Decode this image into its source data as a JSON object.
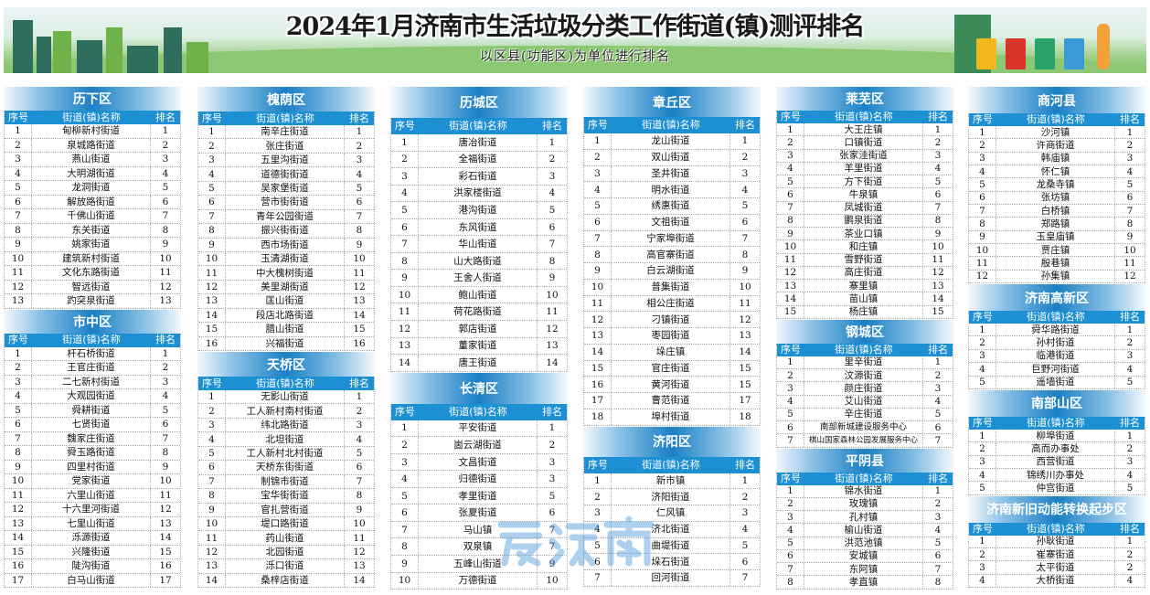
{
  "header": {
    "title": "2024年1月济南市生活垃圾分类工作街道(镇)测评排名",
    "subtitle": "以区县(功能区)为单位进行排名"
  },
  "table_headers": [
    "序号",
    "街道(镇)名称",
    "排名"
  ],
  "watermark": "爱济南",
  "colors": {
    "header_row": "#1d8fd3",
    "title_bar": "#1a7fc4"
  },
  "columns": [
    {
      "sections": [
        {
          "title": "历下区",
          "rows": [
            [
              "1",
              "甸柳新村街道",
              "1"
            ],
            [
              "2",
              "泉城路街道",
              "2"
            ],
            [
              "3",
              "燕山街道",
              "3"
            ],
            [
              "4",
              "大明湖街道",
              "4"
            ],
            [
              "5",
              "龙洞街道",
              "5"
            ],
            [
              "6",
              "解放路街道",
              "6"
            ],
            [
              "7",
              "千佛山街道",
              "7"
            ],
            [
              "8",
              "东关街道",
              "8"
            ],
            [
              "9",
              "姚家街道",
              "9"
            ],
            [
              "10",
              "建筑新村街道",
              "10"
            ],
            [
              "11",
              "文化东路街道",
              "11"
            ],
            [
              "12",
              "智远街道",
              "12"
            ],
            [
              "13",
              "趵突泉街道",
              "13"
            ]
          ]
        },
        {
          "title": "市中区",
          "rows": [
            [
              "1",
              "杆石桥街道",
              "1"
            ],
            [
              "2",
              "王官庄街道",
              "2"
            ],
            [
              "3",
              "二七新村街道",
              "3"
            ],
            [
              "4",
              "大观园街道",
              "4"
            ],
            [
              "5",
              "舜耕街道",
              "5"
            ],
            [
              "6",
              "七贤街道",
              "6"
            ],
            [
              "7",
              "魏家庄街道",
              "7"
            ],
            [
              "8",
              "舜玉路街道",
              "8"
            ],
            [
              "9",
              "四里村街道",
              "9"
            ],
            [
              "10",
              "党家街道",
              "10"
            ],
            [
              "11",
              "六里山街道",
              "11"
            ],
            [
              "12",
              "十六里河街道",
              "12"
            ],
            [
              "13",
              "七里山街道",
              "13"
            ],
            [
              "14",
              "泺源街道",
              "14"
            ],
            [
              "15",
              "兴隆街道",
              "15"
            ],
            [
              "16",
              "陡沟街道",
              "16"
            ],
            [
              "17",
              "白马山街道",
              "17"
            ]
          ]
        }
      ]
    },
    {
      "sections": [
        {
          "title": "槐荫区",
          "rows": [
            [
              "1",
              "南辛庄街道",
              "1"
            ],
            [
              "2",
              "张庄街道",
              "2"
            ],
            [
              "3",
              "五里沟街道",
              "3"
            ],
            [
              "4",
              "道德街街道",
              "4"
            ],
            [
              "5",
              "吴家堡街道",
              "5"
            ],
            [
              "6",
              "营市街街道",
              "6"
            ],
            [
              "7",
              "青年公园街道",
              "7"
            ],
            [
              "8",
              "振兴街街道",
              "8"
            ],
            [
              "9",
              "西市场街道",
              "9"
            ],
            [
              "10",
              "玉清湖街道",
              "10"
            ],
            [
              "11",
              "中大槐树街道",
              "11"
            ],
            [
              "12",
              "美里湖街道",
              "12"
            ],
            [
              "13",
              "匡山街道",
              "13"
            ],
            [
              "14",
              "段店北路街道",
              "14"
            ],
            [
              "15",
              "腊山街道",
              "15"
            ],
            [
              "16",
              "兴福街道",
              "16"
            ]
          ]
        },
        {
          "title": "天桥区",
          "rows": [
            [
              "1",
              "无影山街道",
              "1"
            ],
            [
              "2",
              "工人新村南村街道",
              "2"
            ],
            [
              "3",
              "纬北路街道",
              "3"
            ],
            [
              "4",
              "北坦街道",
              "4"
            ],
            [
              "5",
              "工人新村北村街道",
              "5"
            ],
            [
              "6",
              "天桥东街街道",
              "6"
            ],
            [
              "7",
              "制锦市街道",
              "7"
            ],
            [
              "8",
              "宝华街街道",
              "8"
            ],
            [
              "9",
              "官扎营街道",
              "9"
            ],
            [
              "10",
              "堤口路街道",
              "10"
            ],
            [
              "11",
              "药山街道",
              "11"
            ],
            [
              "12",
              "北园街道",
              "12"
            ],
            [
              "13",
              "泺口街道",
              "13"
            ],
            [
              "14",
              "桑梓店街道",
              "14"
            ]
          ]
        }
      ]
    },
    {
      "sections": [
        {
          "title": "历城区",
          "rows": [
            [
              "1",
              "唐冶街道",
              "1"
            ],
            [
              "2",
              "全福街道",
              "2"
            ],
            [
              "3",
              "彩石街道",
              "3"
            ],
            [
              "4",
              "洪家楼街道",
              "4"
            ],
            [
              "5",
              "港沟街道",
              "5"
            ],
            [
              "6",
              "东风街道",
              "6"
            ],
            [
              "7",
              "华山街道",
              "7"
            ],
            [
              "8",
              "山大路街道",
              "8"
            ],
            [
              "9",
              "王舍人街道",
              "9"
            ],
            [
              "10",
              "鲍山街道",
              "10"
            ],
            [
              "11",
              "荷花路街道",
              "11"
            ],
            [
              "12",
              "郭店街道",
              "12"
            ],
            [
              "13",
              "董家街道",
              "13"
            ],
            [
              "14",
              "唐王街道",
              "14"
            ]
          ]
        },
        {
          "title": "长清区",
          "rows": [
            [
              "1",
              "平安街道",
              "1"
            ],
            [
              "2",
              "崮云湖街道",
              "2"
            ],
            [
              "3",
              "文昌街道",
              "3"
            ],
            [
              "4",
              "归德街道",
              "3"
            ],
            [
              "5",
              "孝里街道",
              "5"
            ],
            [
              "6",
              "张夏街道",
              "6"
            ],
            [
              "7",
              "马山镇",
              "7"
            ],
            [
              "8",
              "双泉镇",
              "7"
            ],
            [
              "9",
              "五峰山街道",
              "9"
            ],
            [
              "10",
              "万德街道",
              "10"
            ]
          ]
        }
      ]
    },
    {
      "sections": [
        {
          "title": "章丘区",
          "rows": [
            [
              "1",
              "龙山街道",
              "1"
            ],
            [
              "2",
              "双山街道",
              "2"
            ],
            [
              "3",
              "圣井街道",
              "3"
            ],
            [
              "4",
              "明水街道",
              "4"
            ],
            [
              "5",
              "绣惠街道",
              "5"
            ],
            [
              "6",
              "文祖街道",
              "6"
            ],
            [
              "7",
              "宁家埠街道",
              "7"
            ],
            [
              "8",
              "高官寨街道",
              "8"
            ],
            [
              "9",
              "白云湖街道",
              "9"
            ],
            [
              "10",
              "普集街道",
              "10"
            ],
            [
              "11",
              "相公庄街道",
              "11"
            ],
            [
              "12",
              "刁镇街道",
              "12"
            ],
            [
              "13",
              "枣园街道",
              "13"
            ],
            [
              "14",
              "垛庄镇",
              "14"
            ],
            [
              "15",
              "官庄街道",
              "15"
            ],
            [
              "16",
              "黄河街道",
              "15"
            ],
            [
              "17",
              "曹范街道",
              "17"
            ],
            [
              "18",
              "埠村街道",
              "18"
            ]
          ]
        },
        {
          "title": "济阳区",
          "rows": [
            [
              "1",
              "新市镇",
              "1"
            ],
            [
              "2",
              "济阳街道",
              "2"
            ],
            [
              "3",
              "仁风镇",
              "3"
            ],
            [
              "4",
              "济北街道",
              "4"
            ],
            [
              "5",
              "曲堤街道",
              "5"
            ],
            [
              "6",
              "垛石街道",
              "6"
            ],
            [
              "7",
              "回河街道",
              "7"
            ]
          ]
        }
      ]
    },
    {
      "sections": [
        {
          "title": "莱芜区",
          "rows": [
            [
              "1",
              "大王庄镇",
              "1"
            ],
            [
              "2",
              "口镇街道",
              "2"
            ],
            [
              "3",
              "张家洼街道",
              "3"
            ],
            [
              "4",
              "羊里街道",
              "4"
            ],
            [
              "5",
              "方下街道",
              "5"
            ],
            [
              "6",
              "牛泉镇",
              "6"
            ],
            [
              "7",
              "凤城街道",
              "7"
            ],
            [
              "8",
              "鹏泉街道",
              "8"
            ],
            [
              "9",
              "茶业口镇",
              "9"
            ],
            [
              "10",
              "和庄镇",
              "10"
            ],
            [
              "11",
              "雪野街道",
              "11"
            ],
            [
              "12",
              "高庄街道",
              "12"
            ],
            [
              "13",
              "寨里镇",
              "13"
            ],
            [
              "14",
              "苗山镇",
              "14"
            ],
            [
              "15",
              "杨庄镇",
              "15"
            ]
          ]
        },
        {
          "title": "钢城区",
          "rows": [
            [
              "1",
              "里辛街道",
              "1"
            ],
            [
              "2",
              "汶源街道",
              "2"
            ],
            [
              "3",
              "颜庄街道",
              "3"
            ],
            [
              "4",
              "艾山街道",
              "4"
            ],
            [
              "5",
              "辛庄街道",
              "5"
            ],
            [
              "6",
              "南部新城建设服务中心",
              "6"
            ],
            [
              "7",
              "棋山国家森林公园发展服务中心",
              "7"
            ]
          ]
        },
        {
          "title": "平阴县",
          "rows": [
            [
              "1",
              "锦水街道",
              "1"
            ],
            [
              "2",
              "玫瑰镇",
              "2"
            ],
            [
              "3",
              "孔村镇",
              "3"
            ],
            [
              "4",
              "榆山街道",
              "4"
            ],
            [
              "5",
              "洪范池镇",
              "5"
            ],
            [
              "6",
              "安城镇",
              "6"
            ],
            [
              "7",
              "东阿镇",
              "7"
            ],
            [
              "8",
              "孝直镇",
              "8"
            ]
          ]
        }
      ]
    },
    {
      "sections": [
        {
          "title": "商河县",
          "rows": [
            [
              "1",
              "沙河镇",
              "1"
            ],
            [
              "2",
              "许商街道",
              "2"
            ],
            [
              "3",
              "韩庙镇",
              "3"
            ],
            [
              "4",
              "怀仁镇",
              "4"
            ],
            [
              "5",
              "龙桑寺镇",
              "5"
            ],
            [
              "6",
              "张坊镇",
              "6"
            ],
            [
              "7",
              "白桥镇",
              "7"
            ],
            [
              "8",
              "郑路镇",
              "8"
            ],
            [
              "9",
              "玉皇庙镇",
              "9"
            ],
            [
              "10",
              "贾庄镇",
              "10"
            ],
            [
              "11",
              "殷巷镇",
              "11"
            ],
            [
              "12",
              "孙集镇",
              "12"
            ]
          ]
        },
        {
          "title": "济南高新区",
          "rows": [
            [
              "1",
              "舜华路街道",
              "1"
            ],
            [
              "2",
              "孙村街道",
              "2"
            ],
            [
              "3",
              "临港街道",
              "3"
            ],
            [
              "4",
              "巨野河街道",
              "4"
            ],
            [
              "5",
              "遥墙街道",
              "5"
            ]
          ]
        },
        {
          "title": "南部山区",
          "rows": [
            [
              "1",
              "柳埠街道",
              "1"
            ],
            [
              "2",
              "高而办事处",
              "2"
            ],
            [
              "3",
              "西营街道",
              "3"
            ],
            [
              "4",
              "锦绣川办事处",
              "4"
            ],
            [
              "5",
              "仲宫街道",
              "5"
            ]
          ]
        },
        {
          "title": "济南新旧动能转换起步区",
          "rows": [
            [
              "1",
              "孙耿街道",
              "1"
            ],
            [
              "2",
              "崔寨街道",
              "2"
            ],
            [
              "3",
              "太平街道",
              "2"
            ],
            [
              "4",
              "大桥街道",
              "4"
            ]
          ]
        }
      ]
    }
  ]
}
